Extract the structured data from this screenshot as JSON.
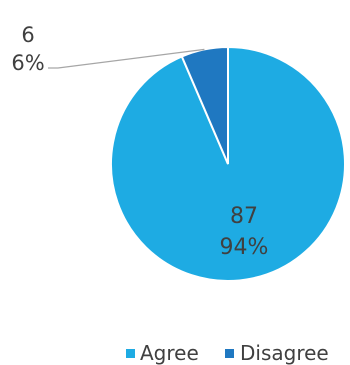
{
  "chart_data": {
    "type": "pie",
    "categories": [
      "Agree",
      "Disagree"
    ],
    "values": [
      87,
      6
    ],
    "percent_labels": [
      "94%",
      "6%"
    ],
    "value_labels": [
      "87",
      "6"
    ],
    "colors": [
      "#1EABE3",
      "#1F78C1"
    ],
    "start_angle_deg": 0,
    "direction": "clockwise",
    "legend_position": "bottom-right",
    "legend": [
      "Agree",
      "Disagree"
    ]
  }
}
